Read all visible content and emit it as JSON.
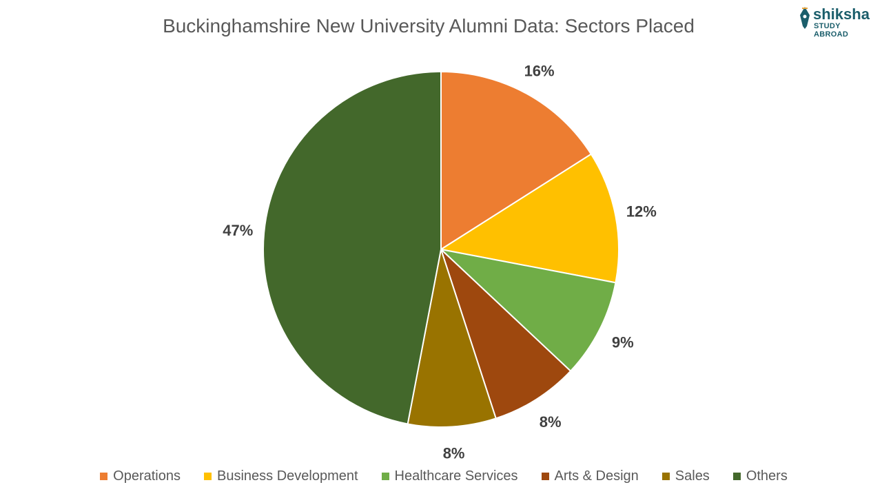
{
  "chart_data": {
    "type": "pie",
    "title": "Buckinghamshire New University Alumni Data: Sectors Placed",
    "categories": [
      "Operations",
      "Business Development",
      "Healthcare Services",
      "Arts & Design",
      "Sales",
      "Others"
    ],
    "values": [
      16,
      12,
      9,
      8,
      8,
      47
    ],
    "data_labels": [
      "16%",
      "12%",
      "9%",
      "8%",
      "8%",
      "47%"
    ],
    "colors": [
      "#ED7D31",
      "#FFC000",
      "#70AD47",
      "#9E480E",
      "#997300",
      "#43682B"
    ],
    "legend_position": "bottom"
  },
  "logo": {
    "name": "shiksha-logo-icon",
    "word": "shiksha",
    "sub": "STUDY ABROAD"
  }
}
